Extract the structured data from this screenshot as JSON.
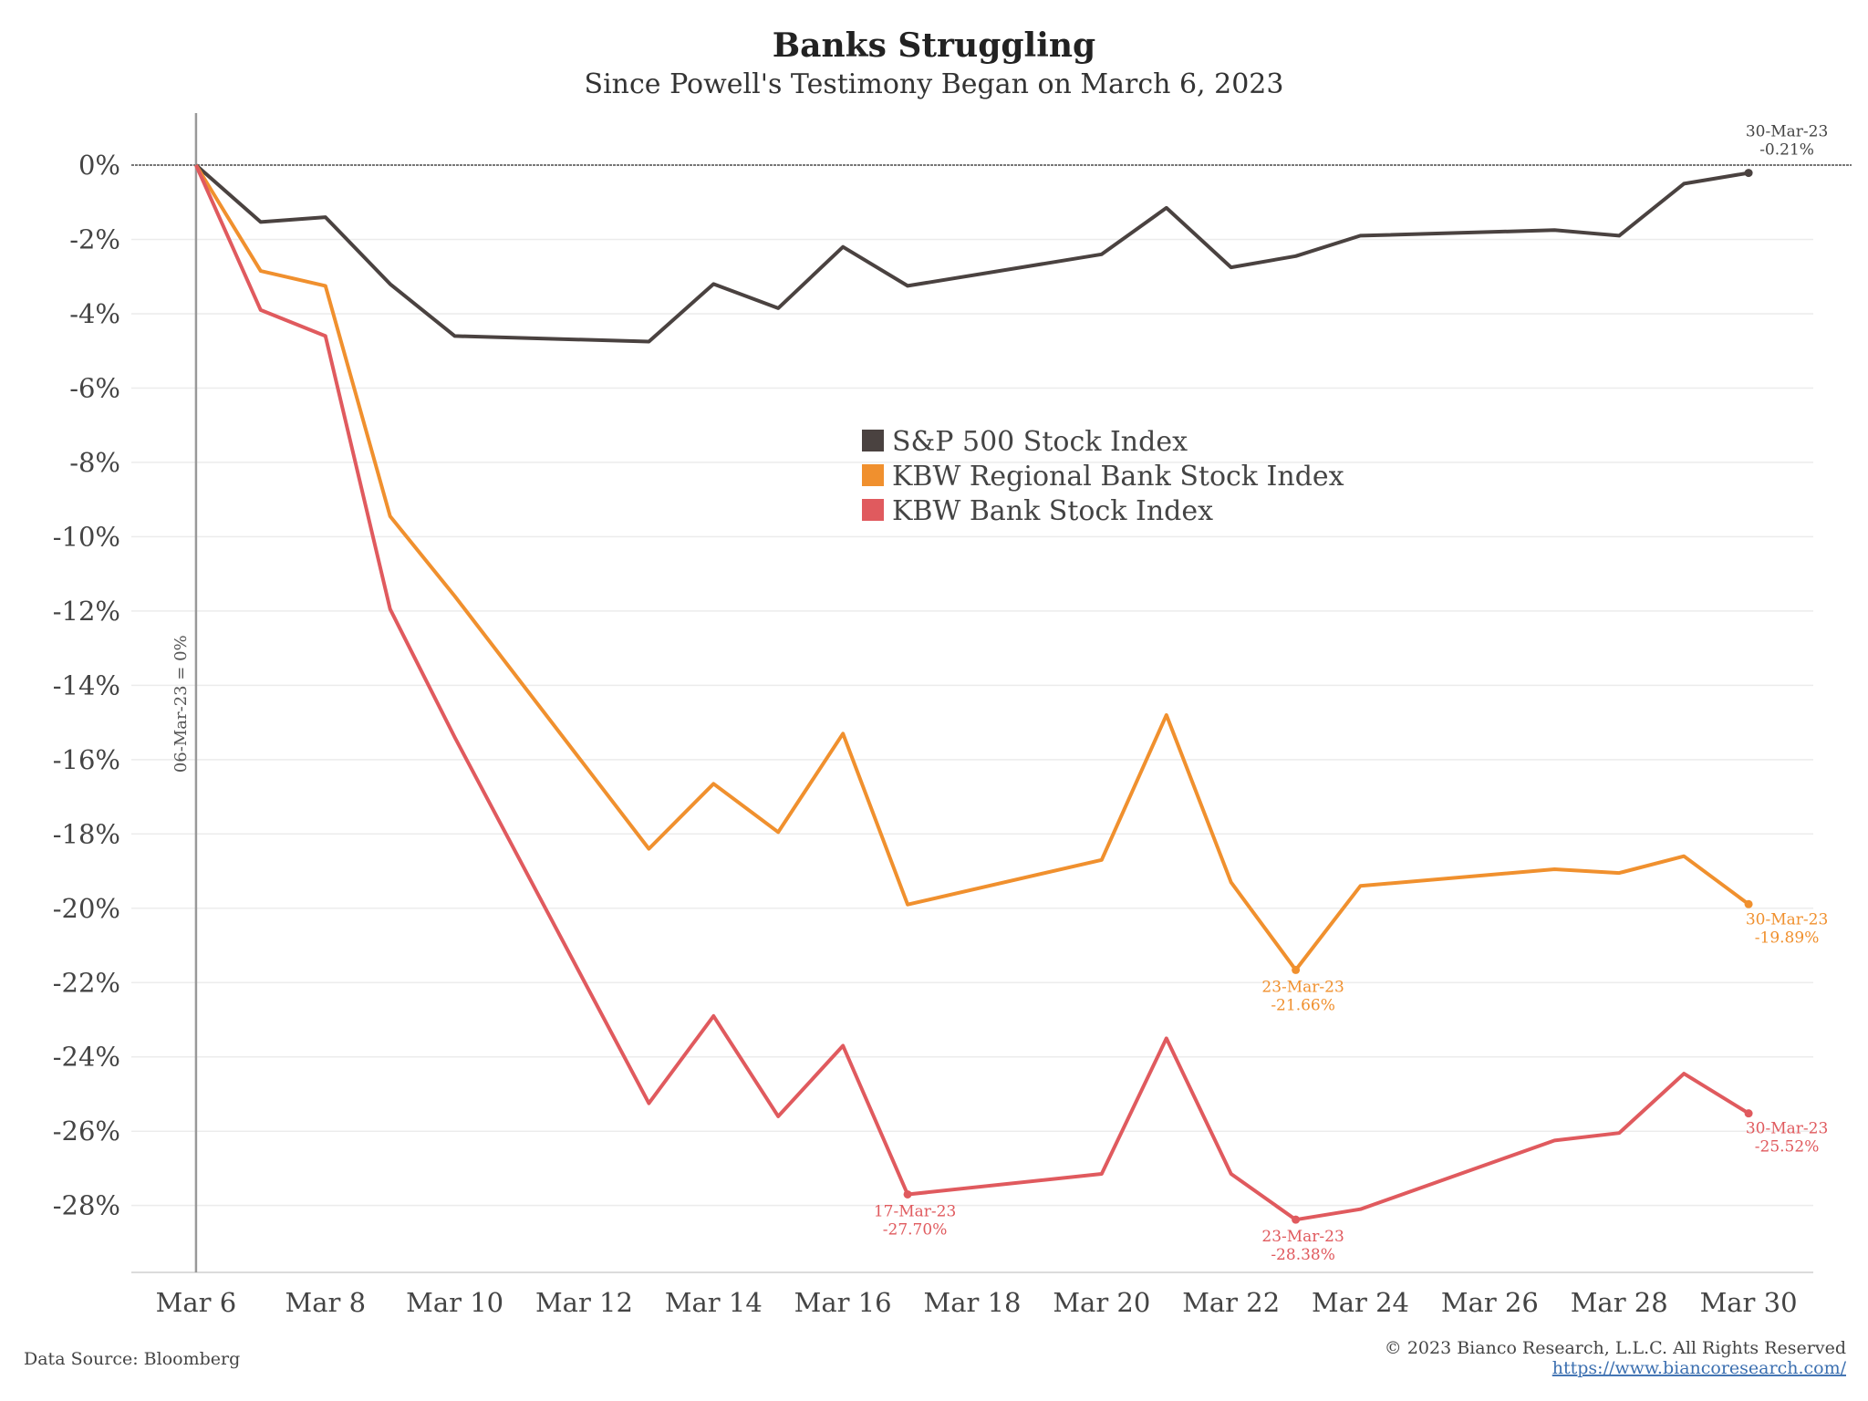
{
  "chart_data": {
    "type": "line",
    "title": "Banks Struggling",
    "subtitle": "Since Powell's Testimony Began on March 6, 2023",
    "x_tick_labels": [
      "Mar 6",
      "Mar 8",
      "Mar 10",
      "Mar 12",
      "Mar 14",
      "Mar 16",
      "Mar 18",
      "Mar 20",
      "Mar 22",
      "Mar 24",
      "Mar 26",
      "Mar 28",
      "Mar 30"
    ],
    "y_tick_labels": [
      "0%",
      "-2%",
      "-4%",
      "-6%",
      "-8%",
      "-10%",
      "-12%",
      "-14%",
      "-16%",
      "-18%",
      "-20%",
      "-22%",
      "-24%",
      "-26%",
      "-28%"
    ],
    "x_range": [
      "2023-03-05",
      "2023-03-31"
    ],
    "y_range": [
      -29.8,
      1.4
    ],
    "y_unit": "%",
    "grid": "horizontal",
    "legend_position": "center",
    "baseline_label": "06-Mar-23 = 0%",
    "series": [
      {
        "name": "S&P 500 Stock Index",
        "color": "#4a4240",
        "x": [
          "2023-03-06",
          "2023-03-07",
          "2023-03-08",
          "2023-03-09",
          "2023-03-10",
          "2023-03-13",
          "2023-03-14",
          "2023-03-15",
          "2023-03-16",
          "2023-03-17",
          "2023-03-20",
          "2023-03-21",
          "2023-03-22",
          "2023-03-23",
          "2023-03-24",
          "2023-03-27",
          "2023-03-28",
          "2023-03-29",
          "2023-03-30"
        ],
        "y": [
          0,
          -1.53,
          -1.4,
          -3.2,
          -4.6,
          -4.75,
          -3.2,
          -3.85,
          -2.2,
          -3.25,
          -2.4,
          -1.15,
          -2.75,
          -2.45,
          -1.9,
          -1.75,
          -1.9,
          -0.5,
          -0.21
        ]
      },
      {
        "name": "KBW Regional Bank Stock Index",
        "color": "#f0902e",
        "x": [
          "2023-03-06",
          "2023-03-07",
          "2023-03-08",
          "2023-03-09",
          "2023-03-10",
          "2023-03-13",
          "2023-03-14",
          "2023-03-15",
          "2023-03-16",
          "2023-03-17",
          "2023-03-20",
          "2023-03-21",
          "2023-03-22",
          "2023-03-23",
          "2023-03-24",
          "2023-03-27",
          "2023-03-28",
          "2023-03-29",
          "2023-03-30"
        ],
        "y": [
          0,
          -2.85,
          -3.25,
          -9.45,
          -11.6,
          -18.4,
          -16.65,
          -17.95,
          -15.3,
          -19.9,
          -18.7,
          -14.8,
          -19.3,
          -21.66,
          -19.4,
          -18.95,
          -19.05,
          -18.6,
          -19.89
        ]
      },
      {
        "name": "KBW Bank Stock Index",
        "color": "#e05a5e",
        "x": [
          "2023-03-06",
          "2023-03-07",
          "2023-03-08",
          "2023-03-09",
          "2023-03-10",
          "2023-03-13",
          "2023-03-14",
          "2023-03-15",
          "2023-03-16",
          "2023-03-17",
          "2023-03-20",
          "2023-03-21",
          "2023-03-22",
          "2023-03-23",
          "2023-03-24",
          "2023-03-27",
          "2023-03-28",
          "2023-03-29",
          "2023-03-30"
        ],
        "y": [
          0,
          -3.9,
          -4.6,
          -11.95,
          -15.4,
          -25.25,
          -22.9,
          -25.6,
          -23.7,
          -27.7,
          -27.15,
          -23.5,
          -27.15,
          -28.38,
          -28.1,
          -26.25,
          -26.05,
          -24.45,
          -25.52
        ]
      }
    ],
    "annotations": [
      {
        "series": 0,
        "x": "2023-03-30",
        "y": -0.21,
        "lines": [
          "30-Mar-23",
          "-0.21%"
        ]
      },
      {
        "series": 1,
        "x": "2023-03-23",
        "y": -21.66,
        "lines": [
          "23-Mar-23",
          "-21.66%"
        ]
      },
      {
        "series": 1,
        "x": "2023-03-30",
        "y": -19.89,
        "lines": [
          "30-Mar-23",
          "-19.89%"
        ]
      },
      {
        "series": 2,
        "x": "2023-03-17",
        "y": -27.7,
        "lines": [
          "17-Mar-23",
          "-27.70%"
        ]
      },
      {
        "series": 2,
        "x": "2023-03-23",
        "y": -28.38,
        "lines": [
          "23-Mar-23",
          "-28.38%"
        ]
      },
      {
        "series": 2,
        "x": "2023-03-30",
        "y": -25.52,
        "lines": [
          "30-Mar-23",
          "-25.52%"
        ]
      }
    ]
  },
  "footer": {
    "source": "Data Source: Bloomberg",
    "copyright": "© 2023 Bianco Research, L.L.C. All Rights Reserved",
    "url": "https://www.biancoresearch.com/"
  }
}
